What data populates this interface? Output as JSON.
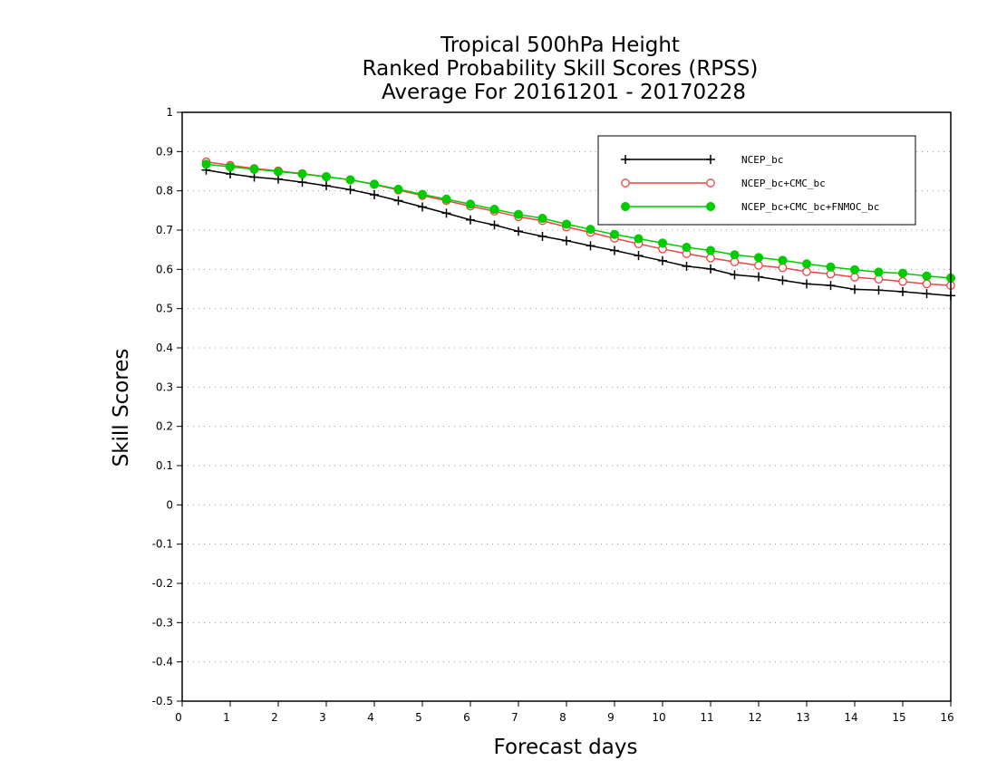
{
  "chart_data": {
    "type": "line",
    "title_lines": [
      "Tropical 500hPa Height",
      "Ranked Probability Skill Scores (RPSS)",
      "Average For 20161201 - 20170228"
    ],
    "xlabel": "Forecast days",
    "ylabel": "Skill Scores",
    "xlim": [
      0,
      16
    ],
    "ylim": [
      -0.5,
      1
    ],
    "x_ticks": [
      "0",
      "1",
      "2",
      "3",
      "4",
      "5",
      "6",
      "7",
      "8",
      "9",
      "10",
      "11",
      "12",
      "13",
      "14",
      "15",
      "16"
    ],
    "y_ticks": [
      "-0.5",
      "-0.4",
      "-0.3",
      "-0.2",
      "-0.1",
      "0",
      "0.1",
      "0.2",
      "0.3",
      "0.4",
      "0.5",
      "0.6",
      "0.7",
      "0.8",
      "0.9",
      "1"
    ],
    "grid": true,
    "legend_position": "top-right",
    "x": [
      0.5,
      1,
      1.5,
      2,
      2.5,
      3,
      3.5,
      4,
      4.5,
      5,
      5.5,
      6,
      6.5,
      7,
      7.5,
      8,
      8.5,
      9,
      9.5,
      10,
      10.5,
      11,
      11.5,
      12,
      12.5,
      13,
      13.5,
      14,
      14.5,
      15,
      15.5,
      16
    ],
    "series": [
      {
        "name": "NCEP_bc",
        "color": "#000000",
        "marker": "plus",
        "values": [
          0.853,
          0.843,
          0.835,
          0.83,
          0.822,
          0.813,
          0.803,
          0.79,
          0.775,
          0.759,
          0.743,
          0.726,
          0.713,
          0.697,
          0.684,
          0.673,
          0.66,
          0.648,
          0.635,
          0.622,
          0.608,
          0.601,
          0.586,
          0.581,
          0.572,
          0.563,
          0.559,
          0.549,
          0.547,
          0.543,
          0.538,
          0.533
        ]
      },
      {
        "name": "NCEP_bc+CMC_bc",
        "color": "#ee4444",
        "marker": "open-circle",
        "values": [
          0.874,
          0.865,
          0.857,
          0.851,
          0.844,
          0.836,
          0.828,
          0.816,
          0.802,
          0.788,
          0.775,
          0.761,
          0.748,
          0.734,
          0.724,
          0.708,
          0.694,
          0.679,
          0.665,
          0.652,
          0.64,
          0.629,
          0.619,
          0.61,
          0.604,
          0.594,
          0.588,
          0.58,
          0.575,
          0.569,
          0.563,
          0.559
        ]
      },
      {
        "name": "NCEP_bc+CMC_bc+FNMOC_bc",
        "color": "#00cc00",
        "marker": "filled-circle",
        "values": [
          0.868,
          0.861,
          0.855,
          0.849,
          0.843,
          0.836,
          0.828,
          0.817,
          0.804,
          0.791,
          0.779,
          0.766,
          0.753,
          0.74,
          0.73,
          0.715,
          0.702,
          0.689,
          0.678,
          0.667,
          0.656,
          0.648,
          0.637,
          0.63,
          0.623,
          0.614,
          0.606,
          0.599,
          0.593,
          0.59,
          0.583,
          0.578
        ]
      }
    ]
  }
}
